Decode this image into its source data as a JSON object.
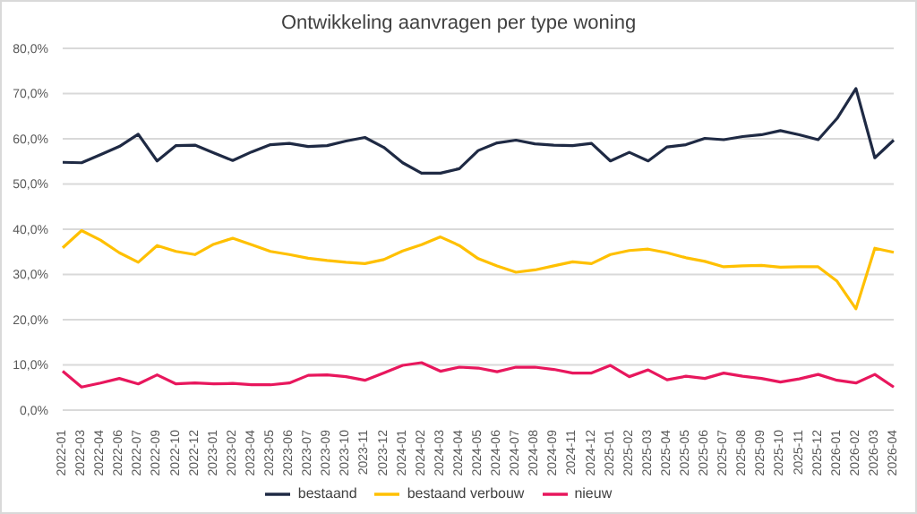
{
  "chart_data": {
    "type": "line",
    "title": "Ontwikkeling aanvragen per type woning",
    "categories": [
      "2022-01",
      "2022-03",
      "2022-04",
      "2022-06",
      "2022-07",
      "2022-09",
      "2022-10",
      "2022-12",
      "2023-01",
      "2023-02",
      "2023-04",
      "2023-05",
      "2023-06",
      "2023-07",
      "2023-09",
      "2023-10",
      "2023-11",
      "2023-12",
      "2024-01",
      "2024-02",
      "2024-03",
      "2024-04",
      "2024-05",
      "2024-06",
      "2024-07",
      "2024-08",
      "2024-09",
      "2024-11",
      "2024-12",
      "2025-01",
      "2025-02",
      "2025-03",
      "2025-04",
      "2025-05",
      "2025-06",
      "2025-07",
      "2025-08",
      "2025-09",
      "2025-10",
      "2025-11",
      "2025-12",
      "2026-01",
      "2026-02",
      "2026-03",
      "2026-04"
    ],
    "series": [
      {
        "name": "bestaand",
        "color": "#1f2a44",
        "values": [
          54.8,
          54.7,
          56.5,
          58.3,
          61.0,
          55.1,
          58.5,
          58.6,
          56.9,
          55.2,
          57.1,
          58.7,
          59.0,
          58.3,
          58.5,
          59.5,
          60.3,
          58.1,
          54.7,
          52.4,
          52.4,
          53.4,
          57.4,
          59.1,
          59.7,
          58.9,
          58.6,
          58.5,
          59.0,
          55.1,
          57.0,
          55.1,
          58.2,
          58.7,
          60.1,
          59.8,
          60.5,
          60.9,
          61.8,
          60.9,
          59.8,
          64.5,
          71.1,
          55.8,
          59.7
        ]
      },
      {
        "name": "bestaand verbouw",
        "color": "#ffc000",
        "values": [
          35.9,
          39.7,
          37.6,
          34.8,
          32.7,
          36.4,
          35.1,
          34.4,
          36.7,
          38.0,
          36.6,
          35.1,
          34.4,
          33.6,
          33.1,
          32.7,
          32.4,
          33.3,
          35.2,
          36.6,
          38.3,
          36.4,
          33.5,
          31.9,
          30.5,
          31.0,
          31.9,
          32.8,
          32.4,
          34.4,
          35.3,
          35.6,
          34.8,
          33.7,
          32.9,
          31.7,
          31.9,
          32.0,
          31.6,
          31.7,
          31.7,
          28.5,
          22.4,
          35.8,
          34.9
        ]
      },
      {
        "name": "nieuw",
        "color": "#e8175d",
        "values": [
          8.6,
          5.1,
          6.0,
          7.0,
          5.8,
          7.8,
          5.8,
          6.0,
          5.8,
          5.9,
          5.6,
          5.6,
          6.0,
          7.7,
          7.8,
          7.4,
          6.6,
          8.2,
          9.9,
          10.5,
          8.6,
          9.5,
          9.3,
          8.5,
          9.5,
          9.5,
          9.0,
          8.2,
          8.2,
          9.9,
          7.4,
          8.9,
          6.7,
          7.5,
          7.0,
          8.2,
          7.5,
          7.0,
          6.2,
          6.9,
          7.9,
          6.6,
          6.0,
          7.9,
          5.1
        ]
      }
    ],
    "ylim": [
      0,
      80
    ],
    "yticks": [
      {
        "value": 0,
        "label": "0,0%"
      },
      {
        "value": 10,
        "label": "10,0%"
      },
      {
        "value": 20,
        "label": "20,0%"
      },
      {
        "value": 30,
        "label": "30,0%"
      },
      {
        "value": 40,
        "label": "40,0%"
      },
      {
        "value": 50,
        "label": "50,0%"
      },
      {
        "value": 60,
        "label": "60,0%"
      },
      {
        "value": 70,
        "label": "70,0%"
      },
      {
        "value": 80,
        "label": "80,0%"
      }
    ],
    "grid": "y",
    "legend": "bottom",
    "marker": "none",
    "line_style": "solid"
  }
}
